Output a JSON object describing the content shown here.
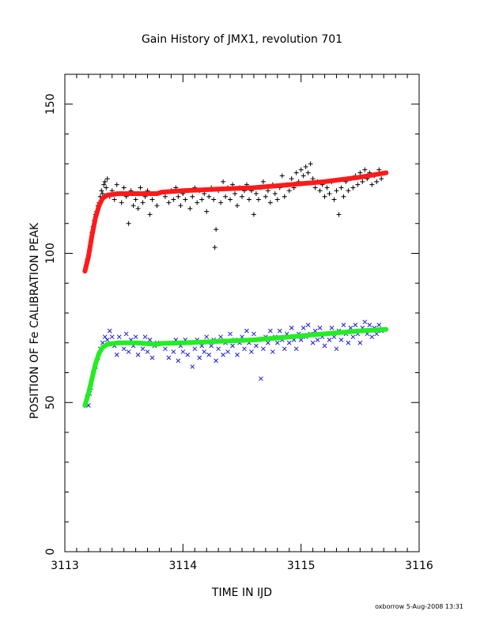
{
  "chart_data": {
    "type": "scatter",
    "title": "Gain History of JMX1, revolution 701",
    "xlabel": "TIME IN IJD",
    "ylabel": "POSITION OF Fe CALIBRATION PEAK",
    "xlim": [
      3113,
      3116
    ],
    "ylim": [
      0,
      160
    ],
    "xticks": [
      3113,
      3114,
      3115,
      3116
    ],
    "xtick_labels": [
      "3113",
      "3114",
      "3115",
      "3116"
    ],
    "yticks": [
      0,
      50,
      100,
      150
    ],
    "ytick_labels": [
      "0",
      "50",
      "100",
      "150"
    ],
    "grid": false,
    "series": [
      {
        "marker": "plus",
        "color": "#000000",
        "points": [
          [
            3113.18,
            96
          ],
          [
            3113.19,
            98
          ],
          [
            3113.2,
            99
          ],
          [
            3113.21,
            101
          ],
          [
            3113.22,
            104
          ],
          [
            3113.23,
            107
          ],
          [
            3113.24,
            109
          ],
          [
            3113.25,
            111
          ],
          [
            3113.26,
            113
          ],
          [
            3113.27,
            114
          ],
          [
            3113.28,
            116
          ],
          [
            3113.29,
            117
          ],
          [
            3113.3,
            119
          ],
          [
            3113.31,
            121
          ],
          [
            3113.32,
            120
          ],
          [
            3113.33,
            123
          ],
          [
            3113.34,
            124
          ],
          [
            3113.35,
            122
          ],
          [
            3113.36,
            125
          ],
          [
            3113.38,
            119
          ],
          [
            3113.4,
            121
          ],
          [
            3113.42,
            118
          ],
          [
            3113.44,
            123
          ],
          [
            3113.46,
            120
          ],
          [
            3113.48,
            117
          ],
          [
            3113.5,
            122
          ],
          [
            3113.52,
            119
          ],
          [
            3113.54,
            110
          ],
          [
            3113.56,
            121
          ],
          [
            3113.58,
            116
          ],
          [
            3113.6,
            118
          ],
          [
            3113.62,
            115
          ],
          [
            3113.64,
            122
          ],
          [
            3113.66,
            117
          ],
          [
            3113.68,
            119
          ],
          [
            3113.7,
            121
          ],
          [
            3113.72,
            113
          ],
          [
            3113.74,
            118
          ],
          [
            3113.76,
            120
          ],
          [
            3113.78,
            116
          ],
          [
            3113.85,
            119
          ],
          [
            3113.88,
            117
          ],
          [
            3113.9,
            121
          ],
          [
            3113.92,
            118
          ],
          [
            3113.94,
            122
          ],
          [
            3113.96,
            119
          ],
          [
            3113.98,
            116
          ],
          [
            3114.0,
            120
          ],
          [
            3114.02,
            118
          ],
          [
            3114.04,
            121
          ],
          [
            3114.06,
            115
          ],
          [
            3114.08,
            119
          ],
          [
            3114.1,
            122
          ],
          [
            3114.12,
            117
          ],
          [
            3114.14,
            121
          ],
          [
            3114.16,
            118
          ],
          [
            3114.18,
            120
          ],
          [
            3114.2,
            114
          ],
          [
            3114.22,
            119
          ],
          [
            3114.24,
            122
          ],
          [
            3114.26,
            118
          ],
          [
            3114.27,
            102
          ],
          [
            3114.28,
            108
          ],
          [
            3114.3,
            121
          ],
          [
            3114.32,
            117
          ],
          [
            3114.34,
            124
          ],
          [
            3114.36,
            119
          ],
          [
            3114.38,
            122
          ],
          [
            3114.4,
            118
          ],
          [
            3114.42,
            123
          ],
          [
            3114.44,
            120
          ],
          [
            3114.46,
            116
          ],
          [
            3114.48,
            122
          ],
          [
            3114.5,
            119
          ],
          [
            3114.52,
            121
          ],
          [
            3114.54,
            123
          ],
          [
            3114.56,
            118
          ],
          [
            3114.58,
            121
          ],
          [
            3114.6,
            113
          ],
          [
            3114.62,
            120
          ],
          [
            3114.64,
            118
          ],
          [
            3114.66,
            122
          ],
          [
            3114.68,
            124
          ],
          [
            3114.7,
            119
          ],
          [
            3114.72,
            121
          ],
          [
            3114.74,
            117
          ],
          [
            3114.76,
            123
          ],
          [
            3114.78,
            120
          ],
          [
            3114.8,
            118
          ],
          [
            3114.82,
            122
          ],
          [
            3114.84,
            126
          ],
          [
            3114.86,
            119
          ],
          [
            3114.88,
            123
          ],
          [
            3114.9,
            121
          ],
          [
            3114.92,
            125
          ],
          [
            3114.94,
            122
          ],
          [
            3114.96,
            127
          ],
          [
            3114.98,
            124
          ],
          [
            3115.0,
            128
          ],
          [
            3115.02,
            126
          ],
          [
            3115.04,
            129
          ],
          [
            3115.06,
            127
          ],
          [
            3115.08,
            130
          ],
          [
            3115.1,
            125
          ],
          [
            3115.12,
            122
          ],
          [
            3115.14,
            124
          ],
          [
            3115.16,
            121
          ],
          [
            3115.18,
            123
          ],
          [
            3115.2,
            119
          ],
          [
            3115.22,
            122
          ],
          [
            3115.24,
            120
          ],
          [
            3115.26,
            124
          ],
          [
            3115.28,
            118
          ],
          [
            3115.3,
            121
          ],
          [
            3115.32,
            113
          ],
          [
            3115.34,
            122
          ],
          [
            3115.36,
            119
          ],
          [
            3115.38,
            124
          ],
          [
            3115.4,
            121
          ],
          [
            3115.42,
            125
          ],
          [
            3115.44,
            122
          ],
          [
            3115.46,
            126
          ],
          [
            3115.48,
            123
          ],
          [
            3115.5,
            127
          ],
          [
            3115.52,
            124
          ],
          [
            3115.54,
            128
          ],
          [
            3115.56,
            125
          ],
          [
            3115.58,
            127
          ],
          [
            3115.6,
            123
          ],
          [
            3115.62,
            126
          ],
          [
            3115.64,
            124
          ],
          [
            3115.66,
            128
          ],
          [
            3115.68,
            125
          ]
        ]
      },
      {
        "marker": "cross",
        "color": "#1a1ad8",
        "points": [
          [
            3113.18,
            50
          ],
          [
            3113.19,
            52
          ],
          [
            3113.2,
            49
          ],
          [
            3113.21,
            53
          ],
          [
            3113.22,
            55
          ],
          [
            3113.23,
            58
          ],
          [
            3113.24,
            60
          ],
          [
            3113.26,
            62
          ],
          [
            3113.28,
            65
          ],
          [
            3113.3,
            68
          ],
          [
            3113.32,
            70
          ],
          [
            3113.34,
            72
          ],
          [
            3113.36,
            71
          ],
          [
            3113.38,
            74
          ],
          [
            3113.4,
            72
          ],
          [
            3113.42,
            69
          ],
          [
            3113.44,
            66
          ],
          [
            3113.46,
            72
          ],
          [
            3113.48,
            70
          ],
          [
            3113.5,
            68
          ],
          [
            3113.52,
            73
          ],
          [
            3113.54,
            67
          ],
          [
            3113.56,
            71
          ],
          [
            3113.58,
            69
          ],
          [
            3113.6,
            72
          ],
          [
            3113.62,
            66
          ],
          [
            3113.64,
            70
          ],
          [
            3113.66,
            68
          ],
          [
            3113.68,
            72
          ],
          [
            3113.7,
            67
          ],
          [
            3113.72,
            71
          ],
          [
            3113.74,
            65
          ],
          [
            3113.76,
            69
          ],
          [
            3113.78,
            70
          ],
          [
            3113.85,
            68
          ],
          [
            3113.88,
            65
          ],
          [
            3113.9,
            70
          ],
          [
            3113.92,
            67
          ],
          [
            3113.94,
            71
          ],
          [
            3113.96,
            64
          ],
          [
            3113.98,
            69
          ],
          [
            3114.0,
            67
          ],
          [
            3114.02,
            71
          ],
          [
            3114.04,
            66
          ],
          [
            3114.06,
            70
          ],
          [
            3114.08,
            62
          ],
          [
            3114.1,
            68
          ],
          [
            3114.12,
            71
          ],
          [
            3114.14,
            65
          ],
          [
            3114.16,
            69
          ],
          [
            3114.18,
            67
          ],
          [
            3114.2,
            72
          ],
          [
            3114.22,
            66
          ],
          [
            3114.24,
            69
          ],
          [
            3114.26,
            71
          ],
          [
            3114.28,
            64
          ],
          [
            3114.3,
            68
          ],
          [
            3114.32,
            72
          ],
          [
            3114.34,
            66
          ],
          [
            3114.36,
            70
          ],
          [
            3114.38,
            67
          ],
          [
            3114.4,
            73
          ],
          [
            3114.42,
            69
          ],
          [
            3114.44,
            71
          ],
          [
            3114.46,
            66
          ],
          [
            3114.48,
            70
          ],
          [
            3114.5,
            72
          ],
          [
            3114.52,
            68
          ],
          [
            3114.54,
            74
          ],
          [
            3114.56,
            70
          ],
          [
            3114.58,
            67
          ],
          [
            3114.6,
            73
          ],
          [
            3114.62,
            69
          ],
          [
            3114.64,
            71
          ],
          [
            3114.66,
            58
          ],
          [
            3114.68,
            68
          ],
          [
            3114.7,
            72
          ],
          [
            3114.72,
            70
          ],
          [
            3114.74,
            74
          ],
          [
            3114.76,
            67
          ],
          [
            3114.78,
            72
          ],
          [
            3114.8,
            70
          ],
          [
            3114.82,
            74
          ],
          [
            3114.84,
            71
          ],
          [
            3114.86,
            68
          ],
          [
            3114.88,
            73
          ],
          [
            3114.9,
            70
          ],
          [
            3114.92,
            75
          ],
          [
            3114.94,
            71
          ],
          [
            3114.96,
            68
          ],
          [
            3114.98,
            73
          ],
          [
            3115.0,
            71
          ],
          [
            3115.02,
            75
          ],
          [
            3115.04,
            72
          ],
          [
            3115.06,
            76
          ],
          [
            3115.08,
            73
          ],
          [
            3115.1,
            70
          ],
          [
            3115.12,
            74
          ],
          [
            3115.14,
            71
          ],
          [
            3115.16,
            75
          ],
          [
            3115.18,
            72
          ],
          [
            3115.2,
            69
          ],
          [
            3115.22,
            73
          ],
          [
            3115.24,
            71
          ],
          [
            3115.26,
            75
          ],
          [
            3115.28,
            72
          ],
          [
            3115.3,
            68
          ],
          [
            3115.32,
            74
          ],
          [
            3115.34,
            71
          ],
          [
            3115.36,
            76
          ],
          [
            3115.38,
            73
          ],
          [
            3115.4,
            70
          ],
          [
            3115.42,
            75
          ],
          [
            3115.44,
            72
          ],
          [
            3115.46,
            76
          ],
          [
            3115.48,
            73
          ],
          [
            3115.5,
            70
          ],
          [
            3115.52,
            75
          ],
          [
            3115.54,
            77
          ],
          [
            3115.56,
            73
          ],
          [
            3115.58,
            76
          ],
          [
            3115.6,
            72
          ],
          [
            3115.62,
            75
          ],
          [
            3115.64,
            73
          ],
          [
            3115.66,
            76
          ],
          [
            3115.68,
            74
          ]
        ]
      },
      {
        "marker": "line",
        "color": "#ff1a1a",
        "points": [
          [
            3113.17,
            94
          ],
          [
            3113.2,
            99
          ],
          [
            3113.23,
            106
          ],
          [
            3113.26,
            112
          ],
          [
            3113.29,
            116
          ],
          [
            3113.32,
            118.5
          ],
          [
            3113.36,
            119.5
          ],
          [
            3113.45,
            120
          ],
          [
            3113.6,
            120
          ],
          [
            3113.78,
            120
          ],
          [
            3113.82,
            120.5
          ],
          [
            3114.0,
            121
          ],
          [
            3114.3,
            121.5
          ],
          [
            3114.6,
            122
          ],
          [
            3114.9,
            123
          ],
          [
            3115.2,
            124
          ],
          [
            3115.5,
            125.5
          ],
          [
            3115.72,
            127
          ]
        ]
      },
      {
        "marker": "line",
        "color": "#22ee22",
        "points": [
          [
            3113.17,
            49
          ],
          [
            3113.2,
            53
          ],
          [
            3113.23,
            58
          ],
          [
            3113.26,
            63
          ],
          [
            3113.29,
            66.5
          ],
          [
            3113.32,
            68.5
          ],
          [
            3113.36,
            69.5
          ],
          [
            3113.45,
            70
          ],
          [
            3113.6,
            70
          ],
          [
            3113.78,
            69.5
          ],
          [
            3113.82,
            69.8
          ],
          [
            3114.0,
            70
          ],
          [
            3114.3,
            70.5
          ],
          [
            3114.6,
            71
          ],
          [
            3114.9,
            72
          ],
          [
            3115.2,
            73
          ],
          [
            3115.5,
            74
          ],
          [
            3115.72,
            74.5
          ]
        ]
      }
    ]
  },
  "footer_stamp": "oxborrow   5-Aug-2008 13:31"
}
